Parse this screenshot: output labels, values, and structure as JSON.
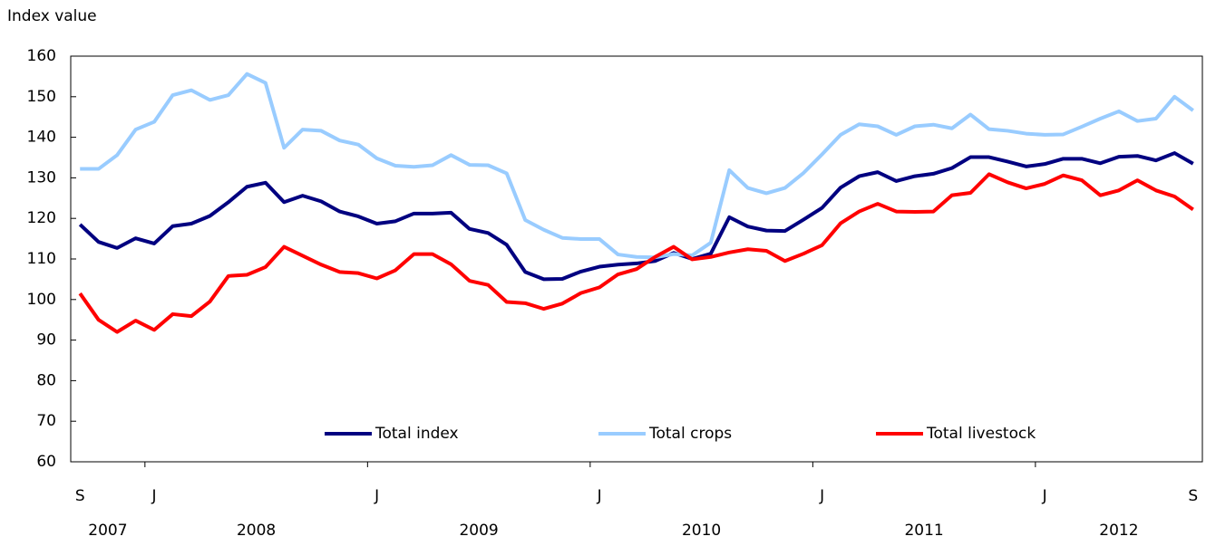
{
  "chart_data": {
    "type": "line",
    "y_axis_label": "Index value",
    "categories": [
      "S",
      null,
      null,
      null,
      "J",
      null,
      null,
      null,
      null,
      null,
      null,
      null,
      null,
      null,
      null,
      null,
      "J",
      null,
      null,
      null,
      null,
      null,
      null,
      null,
      null,
      null,
      null,
      null,
      "J",
      null,
      null,
      null,
      null,
      null,
      null,
      null,
      null,
      null,
      null,
      null,
      "J",
      null,
      null,
      null,
      null,
      null,
      null,
      null,
      null,
      null,
      null,
      null,
      "J",
      null,
      null,
      null,
      null,
      null,
      null,
      null,
      "S"
    ],
    "years": [
      "2007",
      "2008",
      "2009",
      "2010",
      "2011",
      "2012"
    ],
    "ylim": [
      60,
      160
    ],
    "yticks": [
      60,
      70,
      80,
      90,
      100,
      110,
      120,
      130,
      140,
      150,
      160
    ],
    "grid": false,
    "legend": "bottom",
    "series": [
      {
        "name": "Total index",
        "color": "#000080",
        "values": [
          118.5,
          114.2,
          112.7,
          115.1,
          113.8,
          118.1,
          118.7,
          120.6,
          124,
          127.8,
          128.8,
          124,
          125.6,
          124.2,
          121.7,
          120.5,
          118.7,
          119.3,
          121.2,
          121.2,
          121.4,
          117.4,
          116.4,
          113.5,
          106.8,
          105,
          105.1,
          106.9,
          108.1,
          108.6,
          108.9,
          109.5,
          111.5,
          110,
          111.3,
          120.3,
          118,
          117,
          116.9,
          119.7,
          122.6,
          127.6,
          130.4,
          131.4,
          129.2,
          130.4,
          131,
          132.4,
          135.1,
          135.1,
          134,
          132.8,
          133.4,
          134.7,
          134.7,
          133.6,
          135.2,
          135.4,
          134.3,
          136.1,
          133.5
        ]
      },
      {
        "name": "Total crops",
        "color": "#99ccff",
        "values": [
          132.2,
          132.2,
          135.6,
          141.9,
          143.8,
          150.4,
          151.6,
          149.2,
          150.4,
          155.6,
          153.4,
          137.4,
          141.9,
          141.6,
          139.2,
          138.2,
          134.8,
          133,
          132.7,
          133.1,
          135.6,
          133.2,
          133.1,
          131.1,
          119.6,
          117.2,
          115.2,
          114.9,
          114.9,
          111.1,
          110.5,
          110.4,
          111.2,
          110.9,
          114,
          131.9,
          127.5,
          126.2,
          127.5,
          131.2,
          135.8,
          140.6,
          143.2,
          142.7,
          140.6,
          142.7,
          143.1,
          142.2,
          145.6,
          142,
          141.6,
          140.9,
          140.6,
          140.7,
          142.6,
          144.6,
          146.4,
          144,
          144.6,
          150,
          146.6
        ]
      },
      {
        "name": "Total livestock",
        "color": "#ff0000",
        "values": [
          101.5,
          95,
          92,
          94.8,
          92.5,
          96.4,
          95.9,
          99.5,
          105.8,
          106.1,
          108,
          113,
          110.8,
          108.6,
          106.8,
          106.5,
          105.2,
          107.2,
          111.2,
          111.2,
          108.7,
          104.6,
          103.6,
          99.4,
          99.1,
          97.7,
          99,
          101.6,
          103,
          106.2,
          107.5,
          110.5,
          113,
          109.9,
          110.5,
          111.6,
          112.4,
          112,
          109.5,
          111.3,
          113.4,
          118.8,
          121.7,
          123.6,
          121.7,
          121.6,
          121.7,
          125.7,
          126.3,
          130.9,
          128.9,
          127.4,
          128.5,
          130.6,
          129.4,
          125.7,
          126.9,
          129.4,
          126.9,
          125.4,
          122.2
        ]
      }
    ]
  }
}
